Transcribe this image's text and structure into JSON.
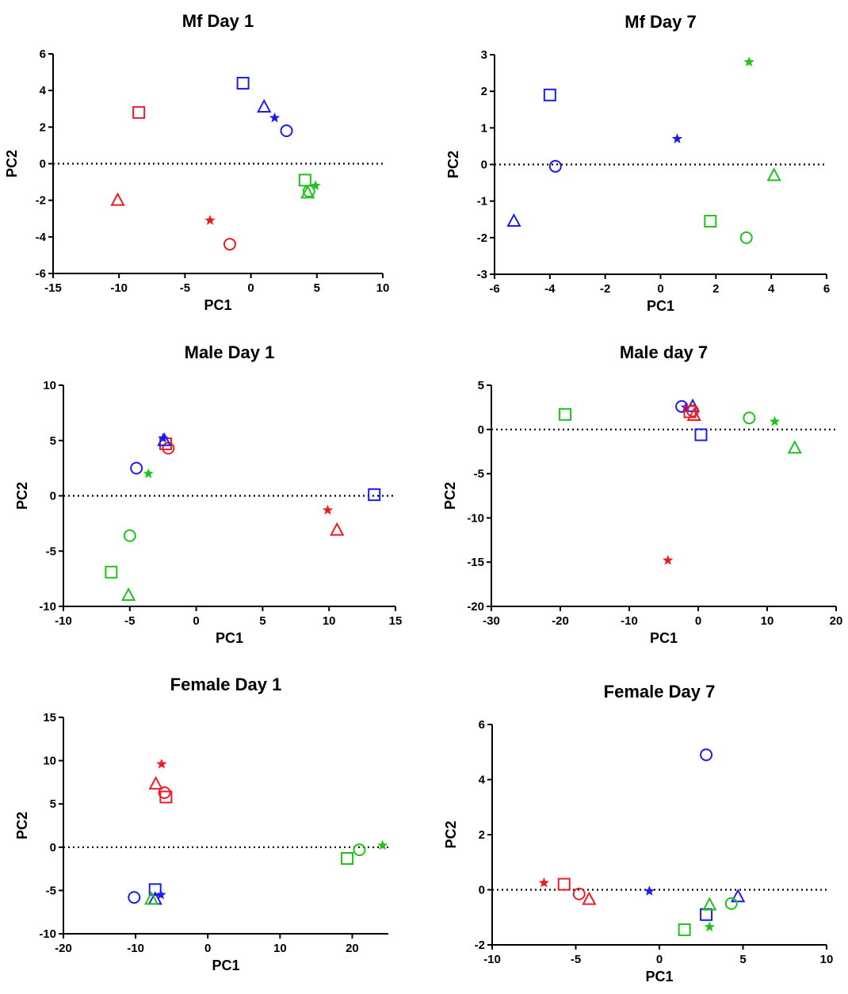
{
  "colors": {
    "red": "#ee1c24",
    "blue": "#1c1cee",
    "green": "#22c11c"
  },
  "chart_data": [
    {
      "type": "scatter",
      "title": "Mf Day 1",
      "xlabel": "PC1",
      "ylabel": "PC2",
      "xlim": [
        -15,
        10
      ],
      "ylim": [
        -6,
        6
      ],
      "xticks": [
        -15,
        -10,
        -5,
        0,
        5,
        10
      ],
      "yticks": [
        -6,
        -4,
        -2,
        0,
        2,
        4,
        6
      ],
      "reference_line_y": 0,
      "points": [
        {
          "x": -8.5,
          "y": 2.8,
          "color": "red",
          "marker": "square"
        },
        {
          "x": -10.1,
          "y": -2.0,
          "color": "red",
          "marker": "triangle"
        },
        {
          "x": -3.1,
          "y": -3.1,
          "color": "red",
          "marker": "star"
        },
        {
          "x": -1.6,
          "y": -4.4,
          "color": "red",
          "marker": "circle"
        },
        {
          "x": -0.6,
          "y": 4.4,
          "color": "blue",
          "marker": "square"
        },
        {
          "x": 1.0,
          "y": 3.1,
          "color": "blue",
          "marker": "triangle"
        },
        {
          "x": 1.8,
          "y": 2.5,
          "color": "blue",
          "marker": "star"
        },
        {
          "x": 2.7,
          "y": 1.8,
          "color": "blue",
          "marker": "circle"
        },
        {
          "x": 4.1,
          "y": -0.9,
          "color": "green",
          "marker": "square"
        },
        {
          "x": 4.9,
          "y": -1.2,
          "color": "green",
          "marker": "star"
        },
        {
          "x": 4.4,
          "y": -1.5,
          "color": "green",
          "marker": "circle"
        },
        {
          "x": 4.3,
          "y": -1.6,
          "color": "green",
          "marker": "triangle"
        }
      ]
    },
    {
      "type": "scatter",
      "title": "Mf Day 7",
      "xlabel": "PC1",
      "ylabel": "PC2",
      "xlim": [
        -6,
        6
      ],
      "ylim": [
        -3,
        3
      ],
      "xticks": [
        -6,
        -4,
        -2,
        0,
        2,
        4,
        6
      ],
      "yticks": [
        -3,
        -2,
        -1,
        0,
        1,
        2,
        3
      ],
      "reference_line_y": 0,
      "points": [
        {
          "x": -4.0,
          "y": 1.9,
          "color": "blue",
          "marker": "square"
        },
        {
          "x": -3.8,
          "y": -0.05,
          "color": "blue",
          "marker": "circle"
        },
        {
          "x": -5.3,
          "y": -1.55,
          "color": "blue",
          "marker": "triangle"
        },
        {
          "x": 0.6,
          "y": 0.7,
          "color": "blue",
          "marker": "star"
        },
        {
          "x": 3.2,
          "y": 2.8,
          "color": "green",
          "marker": "star"
        },
        {
          "x": 4.1,
          "y": -0.3,
          "color": "green",
          "marker": "triangle"
        },
        {
          "x": 1.8,
          "y": -1.55,
          "color": "green",
          "marker": "square"
        },
        {
          "x": 3.1,
          "y": -2.0,
          "color": "green",
          "marker": "circle"
        }
      ]
    },
    {
      "type": "scatter",
      "title": "Male Day 1",
      "xlabel": "PC1",
      "ylabel": "PC2",
      "xlim": [
        -10,
        15
      ],
      "ylim": [
        -10,
        10
      ],
      "xticks": [
        -10,
        -5,
        0,
        5,
        10,
        15
      ],
      "yticks": [
        -10,
        -5,
        0,
        5,
        10
      ],
      "reference_line_y": 0,
      "points": [
        {
          "x": -2.3,
          "y": 4.7,
          "color": "red",
          "marker": "square"
        },
        {
          "x": -2.1,
          "y": 4.3,
          "color": "red",
          "marker": "circle"
        },
        {
          "x": 9.9,
          "y": -1.3,
          "color": "red",
          "marker": "star"
        },
        {
          "x": 10.6,
          "y": -3.1,
          "color": "red",
          "marker": "triangle"
        },
        {
          "x": -2.5,
          "y": 5.2,
          "color": "blue",
          "marker": "star"
        },
        {
          "x": -2.4,
          "y": 5.0,
          "color": "blue",
          "marker": "triangle"
        },
        {
          "x": -4.5,
          "y": 2.5,
          "color": "blue",
          "marker": "circle"
        },
        {
          "x": 13.4,
          "y": 0.1,
          "color": "blue",
          "marker": "square"
        },
        {
          "x": -3.6,
          "y": 2.0,
          "color": "green",
          "marker": "star"
        },
        {
          "x": -5.0,
          "y": -3.6,
          "color": "green",
          "marker": "circle"
        },
        {
          "x": -6.4,
          "y": -6.9,
          "color": "green",
          "marker": "square"
        },
        {
          "x": -5.1,
          "y": -9.0,
          "color": "green",
          "marker": "triangle"
        }
      ]
    },
    {
      "type": "scatter",
      "title": "Male day 7",
      "xlabel": "PC1",
      "ylabel": "PC2",
      "xlim": [
        -30,
        20
      ],
      "ylim": [
        -20,
        5
      ],
      "xticks": [
        -30,
        -20,
        -10,
        0,
        10,
        20
      ],
      "yticks": [
        -20,
        -15,
        -10,
        -5,
        0,
        5
      ],
      "reference_line_y": 0,
      "points": [
        {
          "x": -19.3,
          "y": 1.7,
          "color": "green",
          "marker": "square"
        },
        {
          "x": 7.4,
          "y": 1.3,
          "color": "green",
          "marker": "circle"
        },
        {
          "x": 11.1,
          "y": 0.9,
          "color": "green",
          "marker": "star"
        },
        {
          "x": 14.0,
          "y": -2.1,
          "color": "green",
          "marker": "triangle"
        },
        {
          "x": -2.4,
          "y": 2.6,
          "color": "blue",
          "marker": "circle"
        },
        {
          "x": -1.8,
          "y": 2.5,
          "color": "blue",
          "marker": "star"
        },
        {
          "x": -0.8,
          "y": 2.6,
          "color": "blue",
          "marker": "triangle"
        },
        {
          "x": 0.4,
          "y": -0.6,
          "color": "blue",
          "marker": "square"
        },
        {
          "x": -1.2,
          "y": 2.0,
          "color": "red",
          "marker": "square"
        },
        {
          "x": -0.6,
          "y": 1.6,
          "color": "red",
          "marker": "triangle"
        },
        {
          "x": -0.8,
          "y": 2.1,
          "color": "red",
          "marker": "circle"
        },
        {
          "x": -4.4,
          "y": -14.8,
          "color": "red",
          "marker": "star"
        }
      ]
    },
    {
      "type": "scatter",
      "title": "Female Day 1",
      "xlabel": "PC1",
      "ylabel": "PC2",
      "xlim": [
        -20,
        25
      ],
      "ylim": [
        -10,
        15
      ],
      "xticks": [
        -20,
        -10,
        0,
        10,
        20
      ],
      "yticks": [
        -10,
        -5,
        0,
        5,
        10,
        15
      ],
      "reference_line_y": 0,
      "points": [
        {
          "x": -6.4,
          "y": 9.6,
          "color": "red",
          "marker": "star"
        },
        {
          "x": -7.2,
          "y": 7.3,
          "color": "red",
          "marker": "triangle"
        },
        {
          "x": -6.0,
          "y": 6.3,
          "color": "red",
          "marker": "circle"
        },
        {
          "x": -5.8,
          "y": 5.8,
          "color": "red",
          "marker": "square"
        },
        {
          "x": -10.2,
          "y": -5.8,
          "color": "blue",
          "marker": "circle"
        },
        {
          "x": -7.3,
          "y": -4.9,
          "color": "blue",
          "marker": "square"
        },
        {
          "x": -6.5,
          "y": -5.5,
          "color": "blue",
          "marker": "star"
        },
        {
          "x": -7.3,
          "y": -6.0,
          "color": "blue",
          "marker": "triangle"
        },
        {
          "x": -7.8,
          "y": -6.0,
          "color": "green",
          "marker": "triangle"
        },
        {
          "x": 19.3,
          "y": -1.3,
          "color": "green",
          "marker": "square"
        },
        {
          "x": 21.0,
          "y": -0.3,
          "color": "green",
          "marker": "circle"
        },
        {
          "x": 24.2,
          "y": 0.2,
          "color": "green",
          "marker": "star"
        }
      ]
    },
    {
      "type": "scatter",
      "title": "Female Day 7",
      "xlabel": "PC1",
      "ylabel": "PC2",
      "xlim": [
        -10,
        10
      ],
      "ylim": [
        -2,
        6
      ],
      "xticks": [
        -10,
        -5,
        0,
        5,
        10
      ],
      "yticks": [
        -2,
        0,
        2,
        4,
        6
      ],
      "reference_line_y": 0,
      "points": [
        {
          "x": -6.9,
          "y": 0.25,
          "color": "red",
          "marker": "star"
        },
        {
          "x": -5.7,
          "y": 0.2,
          "color": "red",
          "marker": "square"
        },
        {
          "x": -4.8,
          "y": -0.15,
          "color": "red",
          "marker": "circle"
        },
        {
          "x": -4.2,
          "y": -0.35,
          "color": "red",
          "marker": "triangle"
        },
        {
          "x": -0.6,
          "y": -0.05,
          "color": "blue",
          "marker": "star"
        },
        {
          "x": 2.8,
          "y": 4.9,
          "color": "blue",
          "marker": "circle"
        },
        {
          "x": 2.8,
          "y": -0.9,
          "color": "blue",
          "marker": "square"
        },
        {
          "x": 4.7,
          "y": -0.25,
          "color": "blue",
          "marker": "triangle"
        },
        {
          "x": 1.5,
          "y": -1.45,
          "color": "green",
          "marker": "square"
        },
        {
          "x": 3.0,
          "y": -1.35,
          "color": "green",
          "marker": "star"
        },
        {
          "x": 3.0,
          "y": -0.55,
          "color": "green",
          "marker": "triangle"
        },
        {
          "x": 4.3,
          "y": -0.5,
          "color": "green",
          "marker": "circle"
        }
      ]
    }
  ]
}
